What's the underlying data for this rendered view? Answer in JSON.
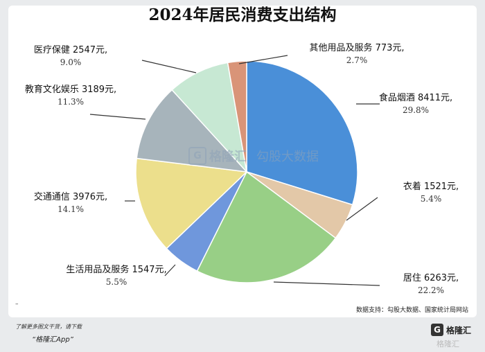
{
  "chart_data": {
    "type": "pie",
    "title": "2024年居民消费支出结构",
    "unit": "元",
    "slices": [
      {
        "name": "食品烟酒",
        "value": 8411,
        "percent": "29.8%",
        "color": "#4a8fd8"
      },
      {
        "name": "衣着",
        "value": 1521,
        "percent": "5.4%",
        "color": "#e3c8a8"
      },
      {
        "name": "居住",
        "value": 6263,
        "percent": "22.2%",
        "color": "#98cf86"
      },
      {
        "name": "生活用品及服务",
        "value": 1547,
        "percent": "5.5%",
        "color": "#6f97dc"
      },
      {
        "name": "交通通信",
        "value": 3976,
        "percent": "14.1%",
        "color": "#ecdf8c"
      },
      {
        "name": "教育文化娱乐",
        "value": 3189,
        "percent": "11.3%",
        "color": "#a7b4bb"
      },
      {
        "name": "医疗保健",
        "value": 2547,
        "percent": "9.0%",
        "color": "#c7e8d3"
      },
      {
        "name": "其他用品及服务",
        "value": 773,
        "percent": "2.7%",
        "color": "#d99478"
      }
    ]
  },
  "source": "数据支持：勾股大数据、国家统计局网站",
  "watermark": {
    "brand": "格隆汇",
    "partner": "勾股大数据",
    "bottom": "格隆汇"
  },
  "footer": {
    "dash": "–",
    "line1": "了解更多图文干货，请下载",
    "line2": "“格隆汇App”",
    "logo_mark": "G",
    "logo_text": "格隆汇"
  }
}
